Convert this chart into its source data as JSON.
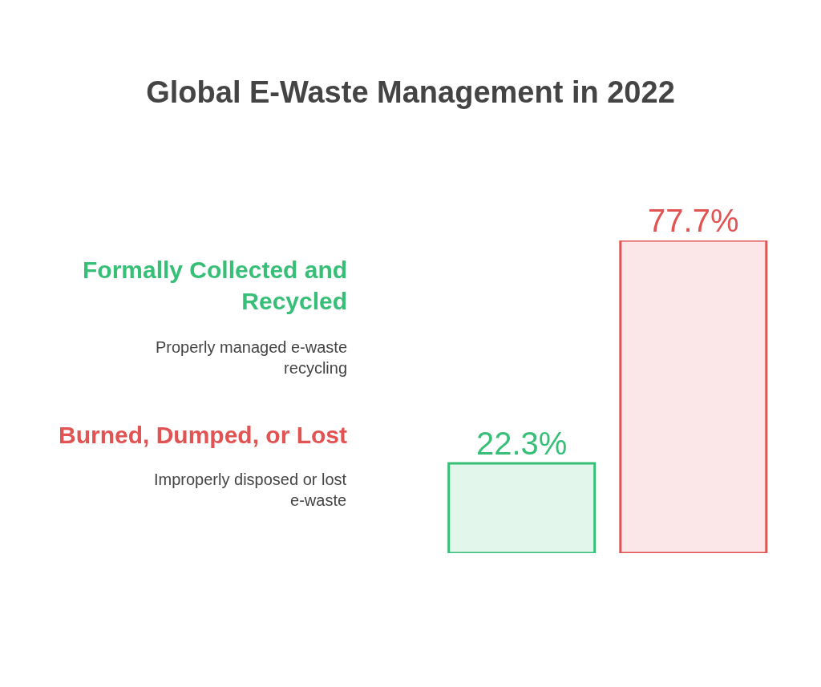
{
  "chart_data": {
    "type": "bar",
    "title": "Global E-Waste Management in 2022",
    "categories": [
      null,
      null
    ],
    "values": [
      22.3,
      77.7
    ],
    "colors": [
      "#e3f6ec",
      "#fbe7e7"
    ],
    "value_labels": [
      "22.3%",
      "77.7%"
    ],
    "annotations": [
      "Formally Collected and Recycled",
      "Properly managed e-waste recycling",
      "Burned, Dumped, or Lost",
      "Improperly disposed or lost e-waste"
    ],
    "tick_labels": false
  }
}
